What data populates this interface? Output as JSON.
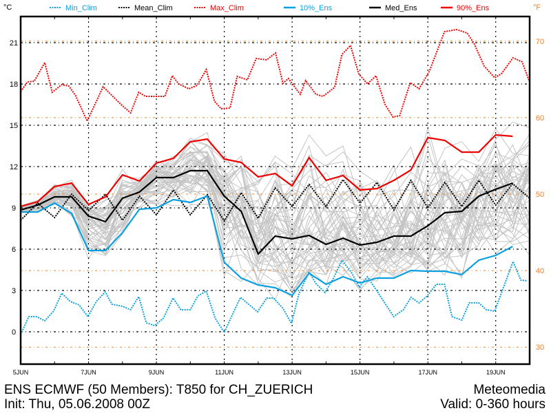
{
  "chart_data": {
    "type": "line",
    "title": "ENS ECMWF (50 Members): T850 for CH_ZUERICH",
    "subtitle": "Init: Thu, 05.06.2008 00Z",
    "credit": "Meteomedia",
    "valid": "Valid: 0-360 hours",
    "ylabel": "°C",
    "ylabel_right": "°F",
    "ylim": [
      -2.35,
      22.9
    ],
    "xlim_days": [
      0,
      15
    ],
    "yticks": [
      0,
      3,
      6,
      9,
      12,
      15,
      18,
      21
    ],
    "yticks_right": [
      30,
      40,
      50,
      60,
      70
    ],
    "xtick_labels": [
      {
        "day": 0,
        "label": "5JUN"
      },
      {
        "day": 2,
        "label": "7JUN"
      },
      {
        "day": 4,
        "label": "9JUN"
      },
      {
        "day": 6,
        "label": "11JUN"
      },
      {
        "day": 8,
        "label": "13JUN"
      },
      {
        "day": 10,
        "label": "15JUN"
      },
      {
        "day": 12,
        "label": "17JUN"
      },
      {
        "day": 14,
        "label": "19JUN"
      }
    ],
    "grid": true,
    "legend_position": "top",
    "ensemble_members": 50,
    "series": [
      {
        "name": "Min_Clim",
        "color": "#0aa0e0",
        "style": "dotted",
        "points": [
          [
            0,
            -0.2
          ],
          [
            0.24,
            1.1
          ],
          [
            0.47,
            1.1
          ],
          [
            0.71,
            0.8
          ],
          [
            0.97,
            1.5
          ],
          [
            1.21,
            2.8
          ],
          [
            1.46,
            2.2
          ],
          [
            1.72,
            1.95
          ],
          [
            1.98,
            1.1
          ],
          [
            2.23,
            2.2
          ],
          [
            2.49,
            2.9
          ],
          [
            2.69,
            2.0
          ],
          [
            3.0,
            1.85
          ],
          [
            3.24,
            1.6
          ],
          [
            3.48,
            2.55
          ],
          [
            3.7,
            0.65
          ],
          [
            3.95,
            0.45
          ],
          [
            4.21,
            1.0
          ],
          [
            4.49,
            2.45
          ],
          [
            4.72,
            1.6
          ],
          [
            5.0,
            1.6
          ],
          [
            5.22,
            2.6
          ],
          [
            5.47,
            2.95
          ],
          [
            5.73,
            1.0
          ],
          [
            6.0,
            -0.05
          ],
          [
            6.23,
            1.2
          ],
          [
            6.48,
            2.5
          ],
          [
            6.98,
            1.45
          ],
          [
            7.25,
            2.45
          ],
          [
            7.45,
            2.45
          ],
          [
            7.73,
            1.7
          ],
          [
            7.98,
            0.6
          ],
          [
            8.2,
            2.75
          ],
          [
            8.5,
            4.35
          ],
          [
            8.7,
            3.5
          ],
          [
            8.97,
            2.85
          ],
          [
            9.21,
            3.85
          ],
          [
            9.47,
            5.2
          ],
          [
            9.76,
            4.25
          ],
          [
            9.98,
            3.25
          ],
          [
            10.22,
            4.0
          ],
          [
            10.49,
            3.0
          ],
          [
            10.99,
            1.1
          ],
          [
            11.28,
            1.6
          ],
          [
            11.5,
            2.5
          ],
          [
            11.74,
            2.1
          ],
          [
            11.98,
            2.6
          ],
          [
            12.25,
            3.45
          ],
          [
            12.49,
            3.45
          ],
          [
            12.71,
            1.1
          ],
          [
            13.0,
            0.85
          ],
          [
            13.22,
            2.1
          ],
          [
            13.5,
            2.1
          ],
          [
            13.72,
            1.6
          ],
          [
            13.97,
            1.5
          ],
          [
            14.21,
            3.1
          ],
          [
            14.51,
            5.1
          ],
          [
            14.74,
            3.75
          ],
          [
            14.94,
            3.7
          ]
        ]
      },
      {
        "name": "Mean_Clim",
        "color": "#000000",
        "style": "dotted",
        "points": [
          [
            0,
            8.1
          ],
          [
            0.5,
            9.35
          ],
          [
            1,
            8.3
          ],
          [
            1.5,
            10.0
          ],
          [
            2,
            8.8
          ],
          [
            2.5,
            10.0
          ],
          [
            3,
            8.1
          ],
          [
            3.5,
            9.85
          ],
          [
            4,
            8.5
          ],
          [
            4.5,
            10.3
          ],
          [
            5,
            8.5
          ],
          [
            5.5,
            9.95
          ],
          [
            6,
            8.05
          ],
          [
            6.5,
            10.1
          ],
          [
            7,
            8.25
          ],
          [
            7.5,
            10.45
          ],
          [
            8,
            9.1
          ],
          [
            8.5,
            10.7
          ],
          [
            9,
            9.1
          ],
          [
            9.5,
            11.05
          ],
          [
            10,
            9.35
          ],
          [
            10.5,
            10.85
          ],
          [
            11,
            8.85
          ],
          [
            11.5,
            11.0
          ],
          [
            12,
            9.0
          ],
          [
            12.5,
            10.85
          ],
          [
            13,
            9.1
          ],
          [
            13.5,
            11.0
          ],
          [
            14,
            9.2
          ],
          [
            14.5,
            10.75
          ],
          [
            15,
            9.7
          ]
        ]
      },
      {
        "name": "Max_Clim",
        "color": "#ee0000",
        "style": "dotted",
        "points": [
          [
            0,
            17.45
          ],
          [
            0.2,
            18.15
          ],
          [
            0.4,
            18.2
          ],
          [
            0.71,
            19.55
          ],
          [
            0.93,
            17.4
          ],
          [
            1.21,
            17.95
          ],
          [
            1.42,
            17.85
          ],
          [
            1.62,
            17.15
          ],
          [
            1.96,
            15.3
          ],
          [
            2.43,
            17.8
          ],
          [
            2.94,
            16.55
          ],
          [
            3.24,
            15.9
          ],
          [
            3.48,
            17.4
          ],
          [
            3.68,
            17.1
          ],
          [
            4.25,
            17.1
          ],
          [
            4.47,
            18.6
          ],
          [
            4.66,
            18.0
          ],
          [
            4.96,
            17.65
          ],
          [
            5.2,
            17.9
          ],
          [
            5.47,
            19.05
          ],
          [
            5.71,
            16.75
          ],
          [
            5.91,
            16.2
          ],
          [
            6.17,
            16.25
          ],
          [
            6.38,
            18.55
          ],
          [
            6.68,
            18.3
          ],
          [
            6.94,
            19.85
          ],
          [
            7.25,
            19.75
          ],
          [
            7.51,
            20.25
          ],
          [
            7.73,
            18.05
          ],
          [
            7.89,
            18.4
          ],
          [
            8.24,
            17.25
          ],
          [
            8.4,
            18.25
          ],
          [
            8.7,
            17.25
          ],
          [
            8.91,
            17.1
          ],
          [
            9.25,
            17.75
          ],
          [
            9.47,
            20.15
          ],
          [
            9.72,
            20.8
          ],
          [
            9.96,
            18.75
          ],
          [
            10.22,
            18.0
          ],
          [
            10.47,
            18.6
          ],
          [
            10.73,
            16.55
          ],
          [
            10.97,
            15.6
          ],
          [
            11.17,
            15.7
          ],
          [
            11.48,
            18.1
          ],
          [
            11.74,
            17.65
          ],
          [
            12.04,
            18.9
          ],
          [
            12.49,
            21.8
          ],
          [
            12.85,
            21.95
          ],
          [
            13.16,
            21.7
          ],
          [
            13.36,
            20.95
          ],
          [
            13.66,
            19.3
          ],
          [
            13.97,
            18.45
          ],
          [
            14.17,
            18.75
          ],
          [
            14.51,
            19.9
          ],
          [
            14.78,
            19.6
          ],
          [
            14.98,
            18.25
          ]
        ]
      },
      {
        "name": "10%_Ens",
        "color": "#0aa0e0",
        "style": "solid",
        "step_days": 0.5,
        "values": [
          8.7,
          8.7,
          9.35,
          8.6,
          5.9,
          5.9,
          7.2,
          8.9,
          9.0,
          9.6,
          9.4,
          9.85,
          5.05,
          3.9,
          3.4,
          3.2,
          2.65,
          4.25,
          3.45,
          4.0,
          3.55,
          3.9,
          3.9,
          4.45,
          4.4,
          4.4,
          4.15,
          5.2,
          5.55,
          6.2
        ]
      },
      {
        "name": "Med_Ens",
        "color": "#000000",
        "style": "solid",
        "step_days": 0.5,
        "values": [
          8.85,
          9.2,
          9.8,
          9.8,
          8.4,
          8.0,
          9.7,
          10.15,
          11.2,
          11.2,
          11.7,
          11.7,
          9.85,
          8.75,
          5.65,
          6.95,
          6.75,
          7.0,
          6.35,
          6.8,
          6.3,
          6.5,
          6.95,
          6.95,
          7.7,
          8.65,
          8.75,
          9.85,
          10.35,
          10.8
        ]
      },
      {
        "name": "90%_Ens",
        "color": "#ee0000",
        "style": "solid",
        "step_days": 0.5,
        "values": [
          9.1,
          9.45,
          10.55,
          10.8,
          9.25,
          9.8,
          11.4,
          10.95,
          12.25,
          12.6,
          13.8,
          14.0,
          12.55,
          12.3,
          11.25,
          11.5,
          10.6,
          12.65,
          11.0,
          11.35,
          10.3,
          10.4,
          11.0,
          11.75,
          14.1,
          13.9,
          13.05,
          13.05,
          14.3,
          14.2
        ]
      }
    ]
  }
}
